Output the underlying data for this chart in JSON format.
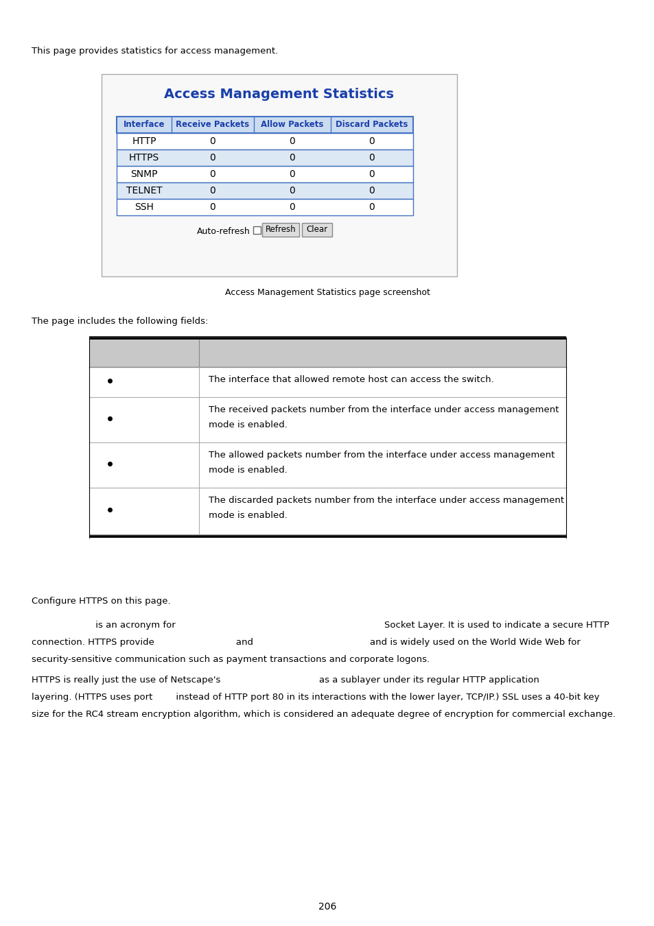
{
  "page_bg": "#ffffff",
  "top_text": "This page provides statistics for access management.",
  "screenshot_box": {
    "title": "Access Management Statistics",
    "title_color": "#1a3faa",
    "header_row": [
      "Interface",
      "Receive Packets",
      "Allow Packets",
      "Discard Packets"
    ],
    "header_bg": "#ccdcf0",
    "header_text_color": "#1a3faa",
    "data_rows": [
      [
        "HTTP",
        "0",
        "0",
        "0"
      ],
      [
        "HTTPS",
        "0",
        "0",
        "0"
      ],
      [
        "SNMP",
        "0",
        "0",
        "0"
      ],
      [
        "TELNET",
        "0",
        "0",
        "0"
      ],
      [
        "SSH",
        "0",
        "0",
        "0"
      ]
    ],
    "row_alt_bg": "#dde8f5",
    "row_normal_bg": "#ffffff",
    "border_color": "#4472c4",
    "autorefresh_label": "Auto-refresh",
    "btn1": "Refresh",
    "btn2": "Clear"
  },
  "caption": "Access Management Statistics page screenshot",
  "fields_intro": "The page includes the following fields:",
  "fields_table": {
    "header_bg": "#c8c8c8",
    "rows": [
      {
        "description": "The interface that allowed remote host can access the switch."
      },
      {
        "description": "The received packets number from the interface under access management\n\nmode is enabled."
      },
      {
        "description": "The allowed packets number from the interface under access management\n\nmode is enabled."
      },
      {
        "description": "The discarded packets number from the interface under access management\n\nmode is enabled."
      }
    ]
  },
  "https_intro": "Configure HTTPS on this page.",
  "https_para1_left": "         is an acronym for",
  "https_para1_right": "Socket Layer. It is used to indicate a secure HTTP",
  "https_para2": "connection. HTTPS provide                            and                                        and is widely used on the World Wide Web for",
  "https_para3": "security-sensitive communication such as payment transactions and corporate logons.",
  "https_para4_left": "HTTPS is really just the use of Netscape's",
  "https_para4_right": "as a sublayer under its regular HTTP application",
  "https_para5": "layering. (HTTPS uses port        instead of HTTP port 80 in its interactions with the lower layer, TCP/IP.) SSL uses a 40-bit key",
  "https_para6": "size for the RC4 stream encryption algorithm, which is considered an adequate degree of encryption for commercial exchange.",
  "page_number": "206",
  "font_family": "DejaVu Sans"
}
